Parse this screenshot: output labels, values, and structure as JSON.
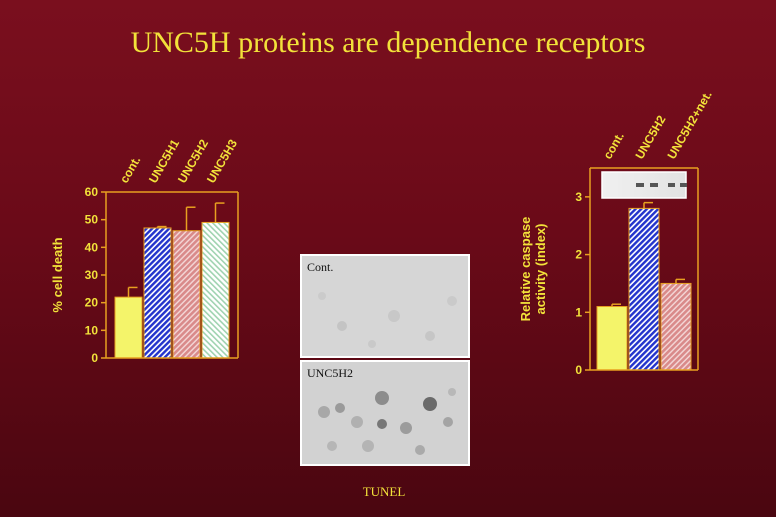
{
  "slide": {
    "title": "UNC5H proteins are dependence receptors",
    "caption": "TUNEL"
  },
  "micrographs": [
    {
      "label": "Cont."
    },
    {
      "label": "UNC5H2"
    }
  ],
  "colors": {
    "text": "#f2e23a",
    "axis": "#e8a020",
    "yellow": "#f4f46a",
    "blue": "#2233cc",
    "pink": "#d98a8a",
    "green": "#bfe3c8"
  },
  "chart_data": [
    {
      "type": "bar",
      "title": "",
      "categories": [
        "cont.",
        "UNC5H1",
        "UNC5H2",
        "UNC5H3"
      ],
      "values": [
        22,
        47,
        46,
        49
      ],
      "errors": [
        3.5,
        0.5,
        8.5,
        7
      ],
      "ylabel": "% cell death",
      "xlabel": "",
      "ylim": [
        0,
        60
      ],
      "yticks": [
        0,
        10,
        20,
        30,
        40,
        50,
        60
      ],
      "fills": [
        "yellow",
        "blue-hatch",
        "pink-hatch",
        "green-hatch"
      ]
    },
    {
      "type": "bar",
      "title": "",
      "categories": [
        "cont.",
        "UNC5H2",
        "UNC5H2+net."
      ],
      "values": [
        1.1,
        2.8,
        1.5
      ],
      "errors": [
        0.04,
        0.1,
        0.07
      ],
      "ylabel": "Relative caspase activity (index)",
      "ylabel_lines": [
        "Relative caspase",
        "activity (index)"
      ],
      "xlabel": "",
      "ylim": [
        0,
        3.5
      ],
      "yticks": [
        0,
        1,
        2,
        3
      ],
      "fills": [
        "yellow",
        "blue-hatch",
        "pink-hatch"
      ],
      "inset": "western-blot"
    }
  ]
}
